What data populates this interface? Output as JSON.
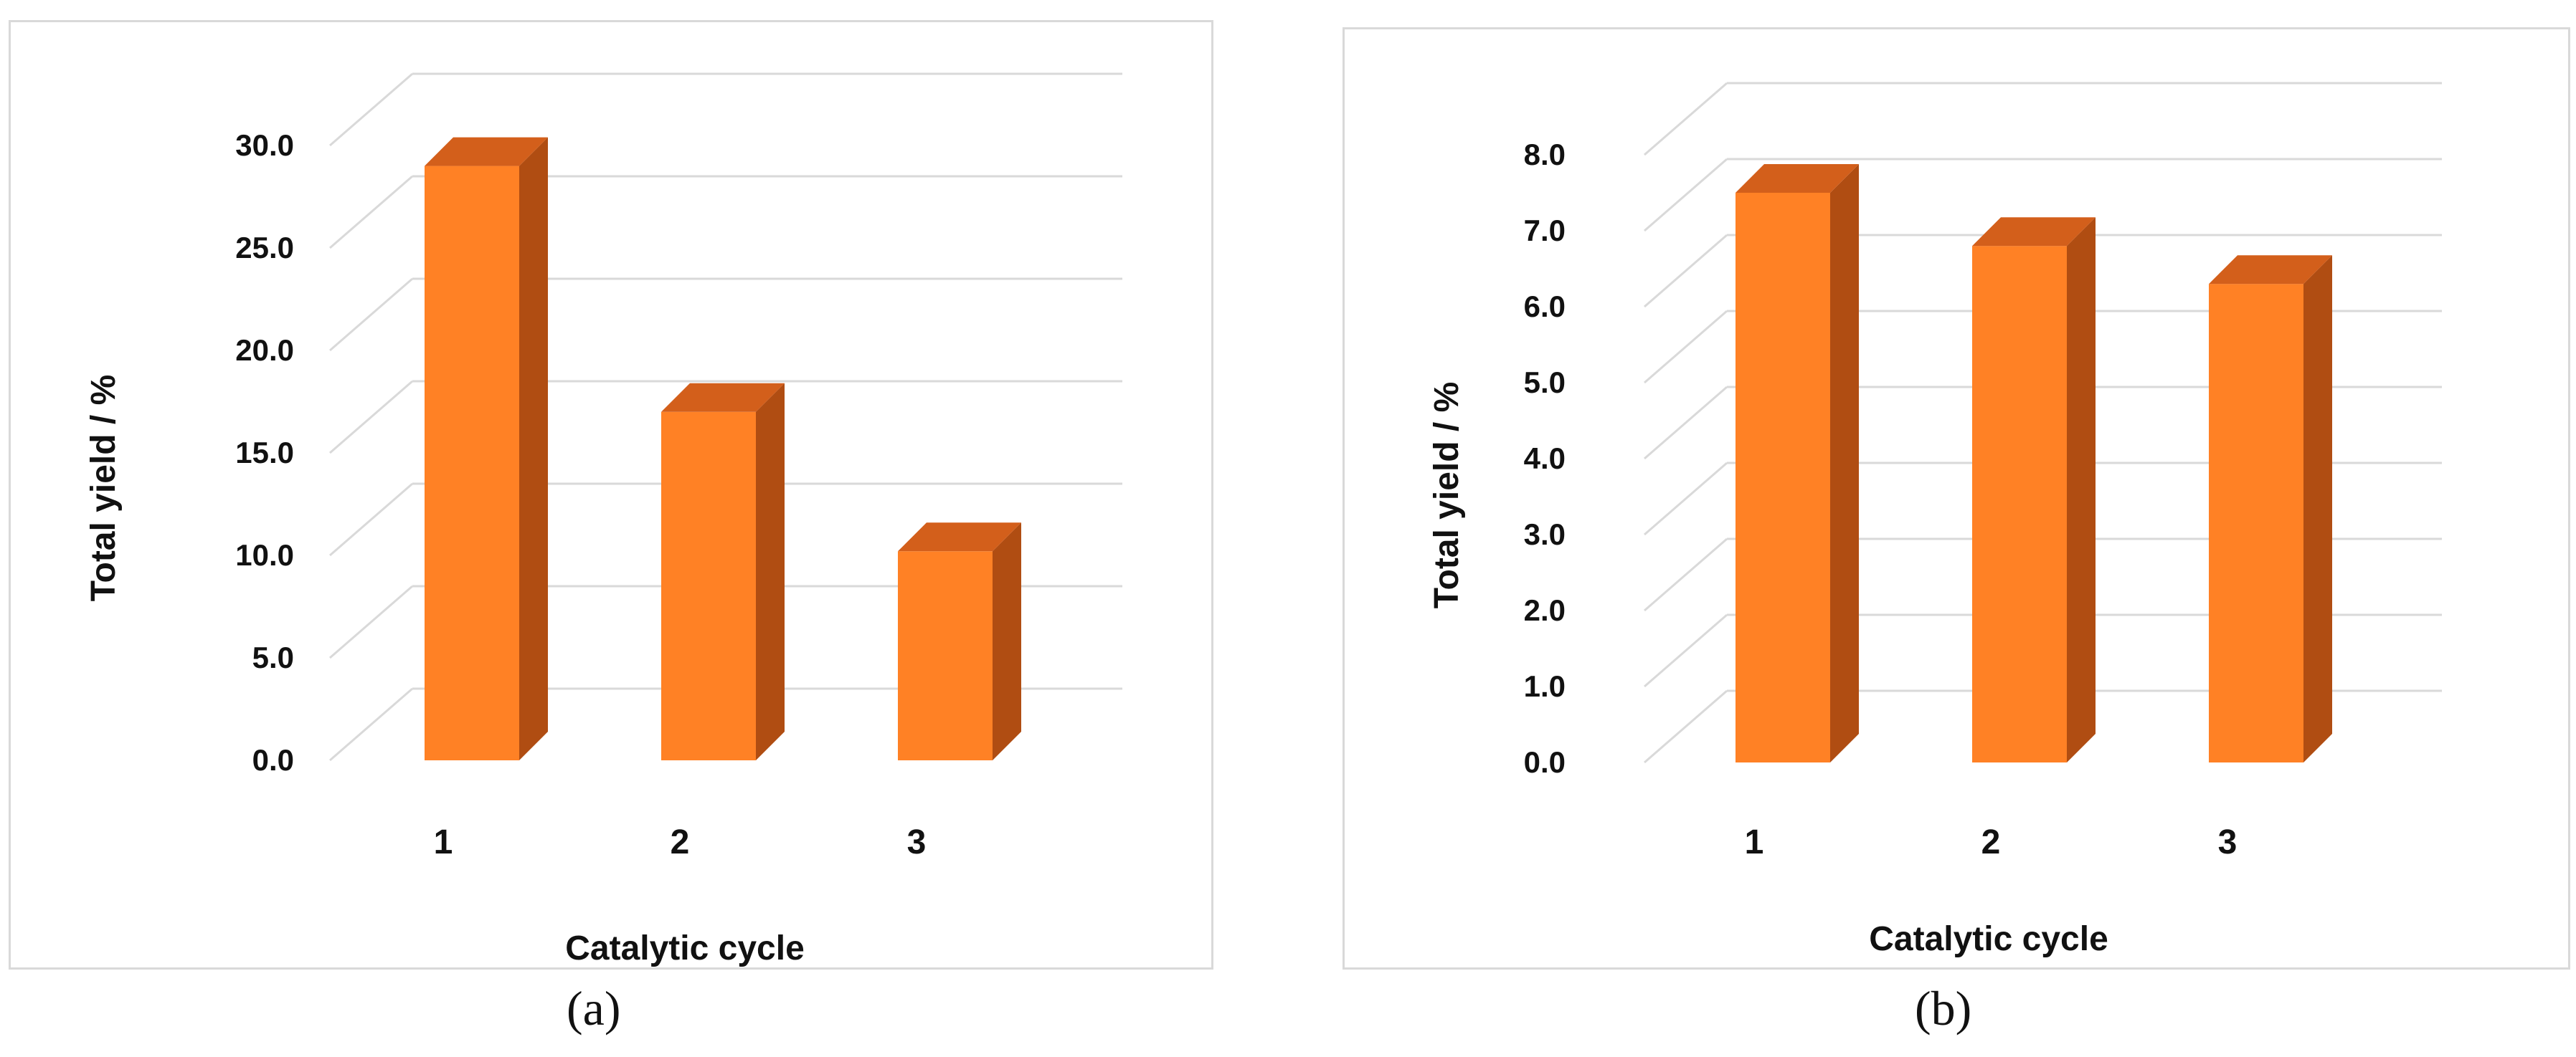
{
  "chart_data": [
    {
      "type": "bar",
      "title": "",
      "caption": "(a)",
      "categories": [
        "1",
        "2",
        "3"
      ],
      "values": [
        29.0,
        17.0,
        10.2
      ],
      "xlabel": "Catalytic cycle",
      "ylabel": "Total yield / %",
      "ylim": [
        0,
        30
      ],
      "yticks": [
        "0.0",
        "5.0",
        "10.0",
        "15.0",
        "20.0",
        "25.0",
        "30.0"
      ],
      "grid": true,
      "legend": "none",
      "style": "3d-column",
      "colors": {
        "bar_front": "#ff8125",
        "bar_side": "#b04d12",
        "bar_top": "#d35f1b",
        "grid": "#d9d9d9"
      }
    },
    {
      "type": "bar",
      "title": "",
      "caption": "(b)",
      "categories": [
        "1",
        "2",
        "3"
      ],
      "values": [
        7.5,
        6.8,
        6.3
      ],
      "xlabel": "Catalytic cycle",
      "ylabel": "Total yield / %",
      "ylim": [
        0,
        8
      ],
      "yticks": [
        "0.0",
        "1.0",
        "2.0",
        "3.0",
        "4.0",
        "5.0",
        "6.0",
        "7.0",
        "8.0"
      ],
      "grid": true,
      "legend": "none",
      "style": "3d-column",
      "colors": {
        "bar_front": "#ff8125",
        "bar_side": "#b04d12",
        "bar_top": "#d35f1b",
        "grid": "#d9d9d9"
      }
    }
  ]
}
